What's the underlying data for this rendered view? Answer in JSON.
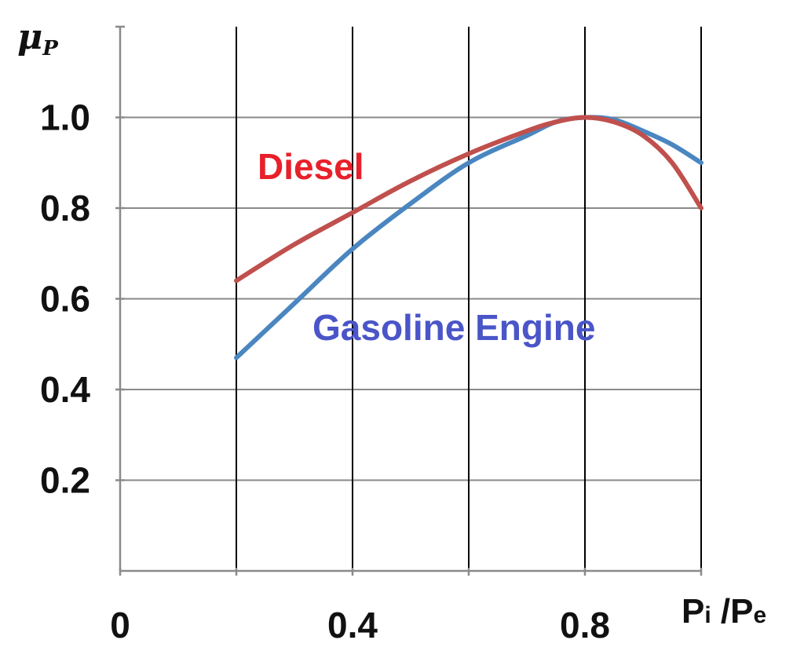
{
  "chart_data": {
    "type": "line",
    "ylabel": {
      "main": "μ",
      "sub": "P"
    },
    "xlabel": {
      "p1": "P",
      "s1": "i",
      "sep": " /",
      "p2": "P",
      "s2": "e"
    },
    "x_tick_labels": [
      "0",
      "0.4",
      "0.8"
    ],
    "y_tick_labels": [
      "0.2",
      "0.4",
      "0.6",
      "0.8",
      "1.0"
    ],
    "y_tick_values": [
      0.2,
      0.4,
      0.6,
      0.8,
      1.0
    ],
    "x_tick_values": [
      0,
      0.4,
      0.8
    ],
    "xlim": [
      0,
      1.0
    ],
    "ylim": [
      0,
      1.2
    ],
    "x_gridlines": [
      0.2,
      0.4,
      0.6,
      0.8,
      1.0
    ],
    "y_gridlines": [
      0.2,
      0.4,
      0.6,
      0.8,
      1.0
    ],
    "grid": true,
    "series": [
      {
        "name": "Diesel",
        "color": "#c0504d",
        "label_color": "#e8202a",
        "x": [
          0.2,
          0.3,
          0.4,
          0.5,
          0.6,
          0.7,
          0.75,
          0.8,
          0.85,
          0.9,
          0.95,
          1.0
        ],
        "y": [
          0.64,
          0.72,
          0.79,
          0.86,
          0.92,
          0.97,
          0.99,
          1.0,
          0.99,
          0.96,
          0.9,
          0.8
        ]
      },
      {
        "name": "Gasoline Engine",
        "color": "#4a86c0",
        "label_color": "#4a55c8",
        "x": [
          0.2,
          0.3,
          0.4,
          0.5,
          0.6,
          0.7,
          0.75,
          0.8,
          0.85,
          0.9,
          0.95,
          1.0
        ],
        "y": [
          0.47,
          0.59,
          0.71,
          0.81,
          0.9,
          0.96,
          0.99,
          1.0,
          0.995,
          0.97,
          0.94,
          0.9
        ]
      }
    ]
  }
}
